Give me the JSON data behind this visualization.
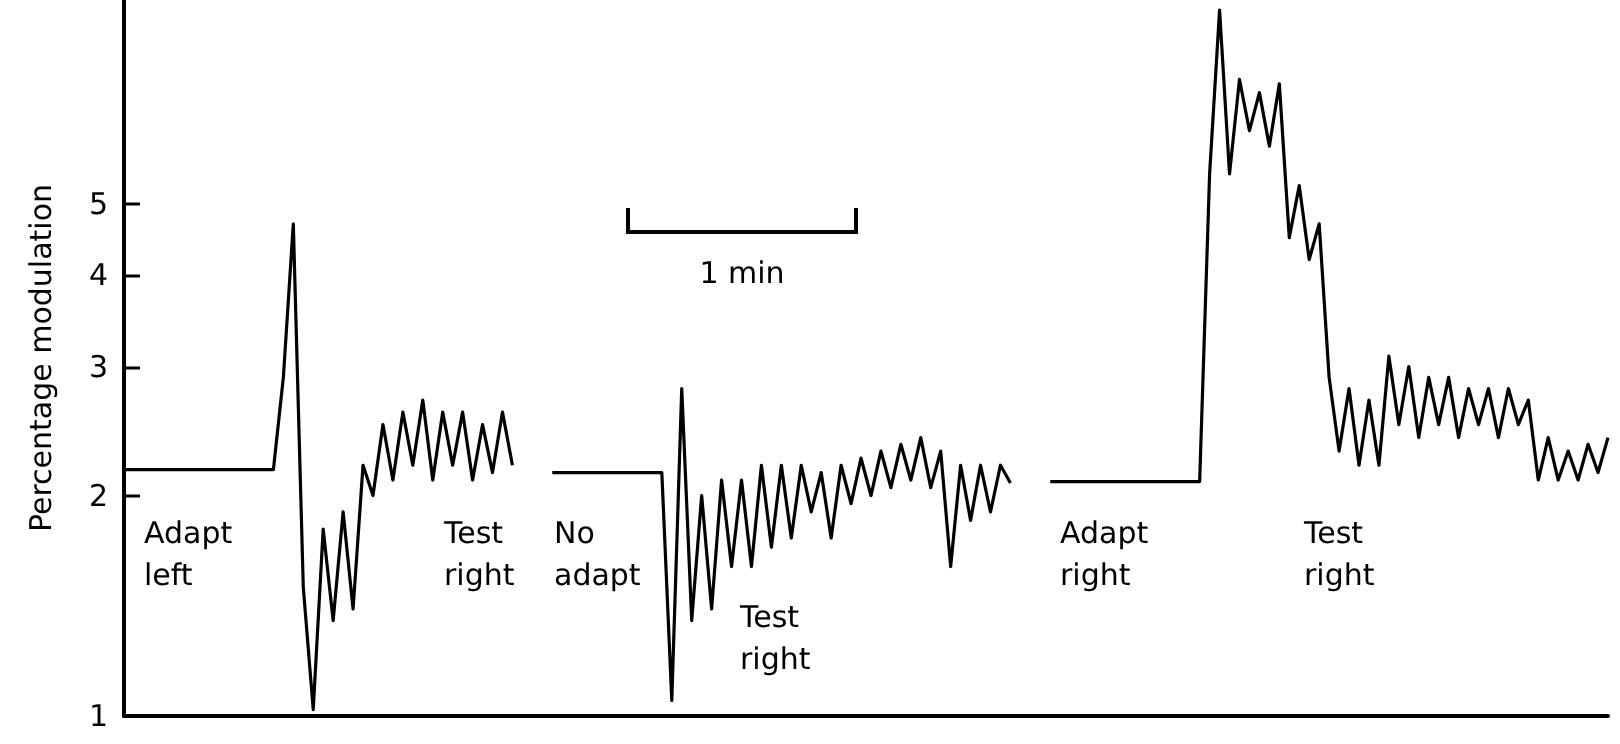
{
  "chart_data": {
    "type": "line",
    "ylabel": "Percentage modulation",
    "log": "y",
    "ylim": [
      1,
      9.5
    ],
    "yticks": [
      1,
      2,
      3,
      4,
      5
    ],
    "grid": false,
    "marker": "none",
    "line_style": "solid",
    "categories": [
      null,
      null,
      null,
      null,
      null,
      null,
      null,
      null,
      null,
      null,
      null,
      null,
      null,
      null,
      null,
      null,
      null,
      null,
      null,
      null,
      null,
      null,
      null,
      null,
      null,
      null,
      null,
      null,
      null,
      null,
      null,
      null,
      null,
      null,
      null,
      null,
      null,
      null,
      null,
      null,
      null,
      null,
      null,
      null,
      null,
      null,
      null,
      null,
      null,
      null,
      null,
      null,
      null,
      null,
      null,
      null,
      null,
      null,
      null,
      null,
      null,
      null,
      null,
      null,
      null,
      null,
      null,
      null,
      null,
      null,
      null,
      null,
      null,
      null,
      null,
      null,
      null,
      null,
      null,
      null,
      null,
      null,
      null,
      null,
      null,
      null,
      null,
      null,
      null,
      null,
      null,
      null,
      null,
      null,
      null,
      null,
      null,
      null,
      null,
      null,
      null,
      null,
      null,
      null,
      null,
      null,
      null,
      null,
      null,
      null,
      null,
      null,
      null,
      null,
      null,
      null,
      null,
      null,
      null,
      null,
      null,
      null,
      null,
      null,
      null,
      null,
      null,
      null,
      null,
      null,
      null,
      null,
      null,
      null,
      null,
      null,
      null,
      null,
      null,
      null,
      null,
      null,
      null,
      null,
      null,
      null,
      null,
      null,
      null,
      null
    ],
    "series": [
      {
        "color": "#000000",
        "values": [
          2.17,
          2.17,
          2.17,
          2.17,
          2.17,
          2.17,
          2.17,
          2.17,
          2.17,
          2.17,
          2.17,
          2.17,
          2.17,
          2.17,
          2.17,
          2.17,
          2.9,
          4.7,
          1.5,
          1.02,
          1.8,
          1.35,
          1.9,
          1.4,
          2.2,
          2.0,
          2.5,
          2.1,
          2.6,
          2.2,
          2.7,
          2.1,
          2.6,
          2.2,
          2.6,
          2.1,
          2.5,
          2.15,
          2.6,
          2.2,
          null,
          null,
          null,
          2.15,
          2.15,
          2.15,
          2.15,
          2.15,
          2.15,
          2.15,
          2.15,
          2.15,
          2.15,
          2.15,
          2.15,
          1.05,
          2.8,
          1.35,
          2.0,
          1.4,
          2.1,
          1.6,
          2.1,
          1.6,
          2.2,
          1.7,
          2.2,
          1.75,
          2.2,
          1.9,
          2.15,
          1.75,
          2.2,
          1.95,
          2.25,
          2.0,
          2.3,
          2.05,
          2.35,
          2.1,
          2.4,
          2.05,
          2.3,
          1.6,
          2.2,
          1.85,
          2.2,
          1.9,
          2.2,
          2.08,
          null,
          null,
          null,
          2.09,
          2.09,
          2.09,
          2.09,
          2.09,
          2.09,
          2.09,
          2.09,
          2.09,
          2.09,
          2.09,
          2.09,
          2.09,
          2.09,
          2.09,
          2.09,
          5.5,
          9.2,
          5.5,
          7.4,
          6.3,
          7.1,
          6.0,
          7.3,
          4.5,
          5.3,
          4.2,
          4.7,
          2.9,
          2.3,
          2.8,
          2.2,
          2.7,
          2.2,
          3.1,
          2.5,
          3.0,
          2.4,
          2.9,
          2.5,
          2.9,
          2.4,
          2.8,
          2.5,
          2.8,
          2.4,
          2.8,
          2.5,
          2.7,
          2.1,
          2.4,
          2.1,
          2.3,
          2.1,
          2.35,
          2.15,
          2.4
        ]
      }
    ],
    "annotations": [
      "Adapt\nleft",
      "Test\nright",
      "No\nadapt",
      "Test\nright",
      "Adapt\nright",
      "Test\nright",
      "1 min"
    ]
  }
}
